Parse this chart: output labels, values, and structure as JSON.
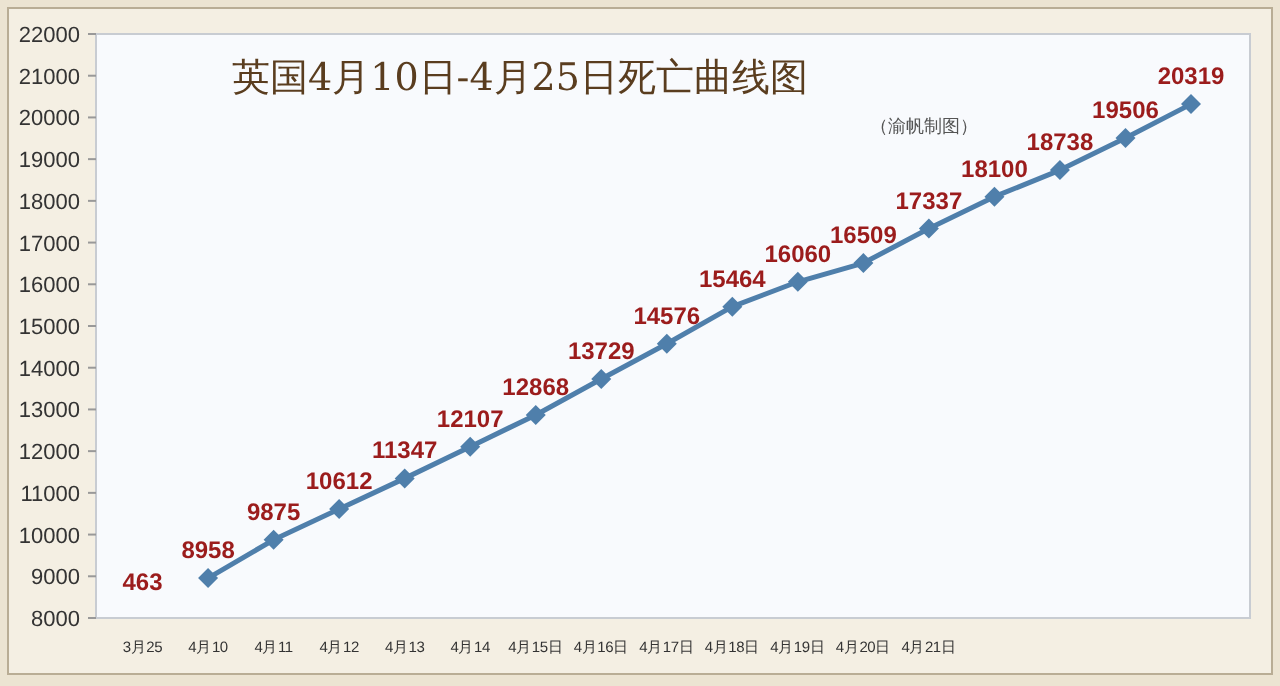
{
  "chart_data": {
    "type": "line",
    "title": "英国4月10日-4月25日死亡曲线图",
    "subtitle": "（渝帆制图）",
    "categories": [
      "3月25",
      "4月10",
      "4月11",
      "4月12",
      "4月13",
      "4月14",
      "4月15日",
      "4月16日",
      "4月17日",
      "4月18日",
      "4月19日",
      "4月20日",
      "4月21日",
      null,
      null,
      null,
      null
    ],
    "series": [
      {
        "color": "#4f7fab",
        "values": [
          null,
          8958,
          9875,
          10612,
          11347,
          12107,
          12868,
          13729,
          14576,
          15464,
          16060,
          16509,
          17337,
          18100,
          18738,
          19506,
          20319
        ]
      }
    ],
    "ylim": [
      8000,
      22000
    ],
    "yticks": [
      8000,
      9000,
      10000,
      11000,
      12000,
      13000,
      14000,
      15000,
      16000,
      17000,
      18000,
      19000,
      20000,
      21000,
      22000
    ],
    "annotations": [
      "463"
    ],
    "marker": "diamond",
    "line_style": "solid",
    "data_labels": true,
    "grid": false
  }
}
